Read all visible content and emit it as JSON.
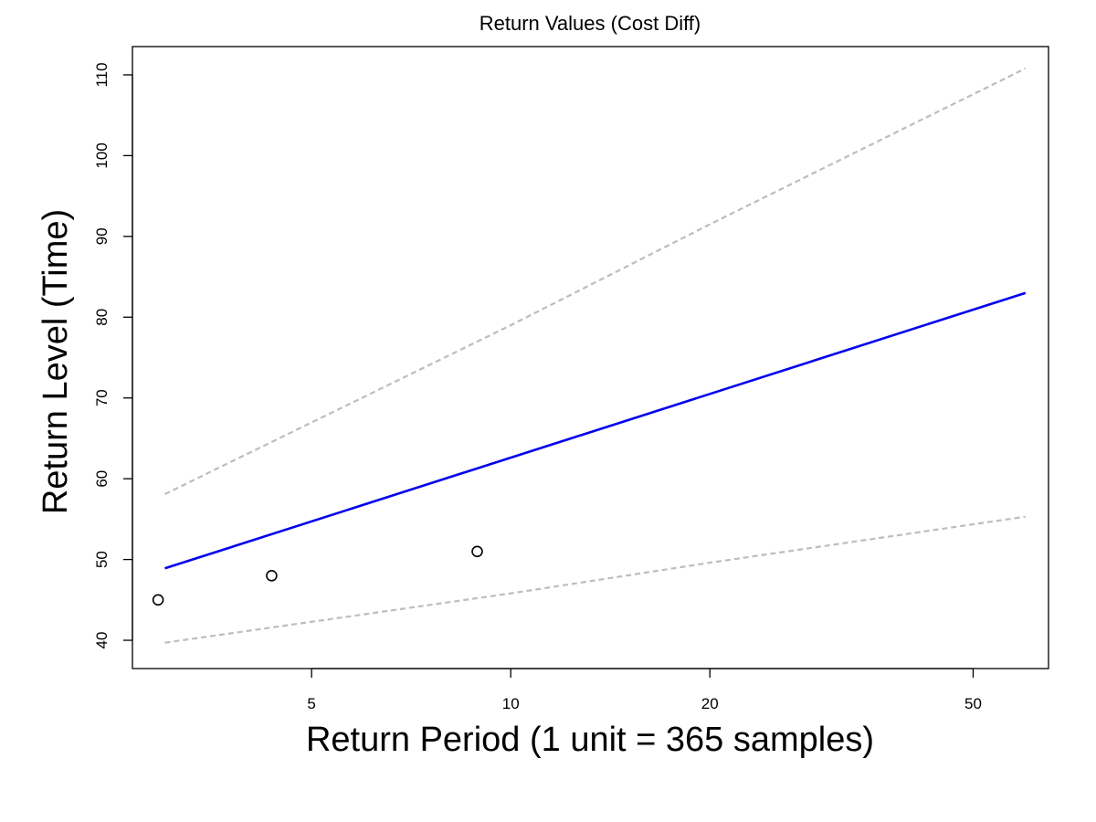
{
  "chart_data": {
    "type": "line",
    "title": "Return Values (Cost Diff)",
    "xlabel": "Return Period (1 unit = 365 samples)",
    "ylabel": "Return Level (Time)",
    "x_scale": "log",
    "xlim": [
      2.68,
      65.0
    ],
    "ylim": [
      36.5,
      113.5
    ],
    "x_ticks": [
      5,
      10,
      20,
      50
    ],
    "y_ticks": [
      40,
      50,
      60,
      70,
      80,
      90,
      100,
      110
    ],
    "grid": false,
    "legend": "none",
    "series": [
      {
        "style": "solid",
        "color": "#0000ee",
        "points": [
          [
            3.0,
            48.9
          ],
          [
            60.0,
            83.0
          ]
        ]
      },
      {
        "style": "dashed",
        "color": "#bdbdbd",
        "points": [
          [
            3.0,
            58.1
          ],
          [
            10.0,
            79.0
          ],
          [
            20.0,
            91.5
          ],
          [
            60.0,
            110.8
          ]
        ]
      },
      {
        "style": "dashed",
        "color": "#bdbdbd",
        "points": [
          [
            3.0,
            39.7
          ],
          [
            10.0,
            45.8
          ],
          [
            20.0,
            49.6
          ],
          [
            60.0,
            55.3
          ]
        ]
      }
    ],
    "points": {
      "marker": "open-circle",
      "color": "#000000",
      "values": [
        [
          2.93,
          45.0
        ],
        [
          4.35,
          48.0
        ],
        [
          8.9,
          51.0
        ]
      ]
    }
  }
}
